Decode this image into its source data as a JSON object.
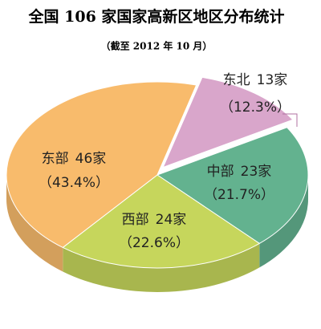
{
  "chart_data": {
    "type": "pie3d",
    "title": "全国 106 家国家高新区地区分布统计",
    "subtitle": "（截至 2012 年 10 月）",
    "categories": [
      "东北",
      "中部",
      "西部",
      "东部"
    ],
    "values": [
      13,
      23,
      24,
      46
    ],
    "value_labels": [
      "13家",
      "23家",
      "24家",
      "46家"
    ],
    "percents": [
      12.3,
      21.7,
      22.6,
      43.4
    ],
    "percent_labels": [
      "（12.3%）",
      "（21.7%）",
      "（22.6%）",
      "（43.4%）"
    ],
    "colors": [
      "#d9a6cb",
      "#63b28f",
      "#c6d65c",
      "#f8bb6c"
    ]
  }
}
